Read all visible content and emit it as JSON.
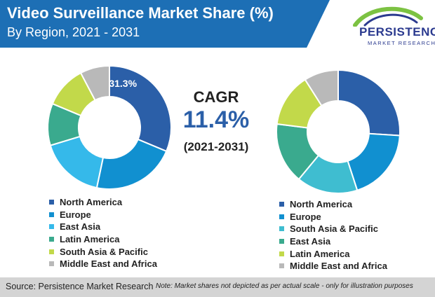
{
  "header": {
    "title": "Video Surveillance Market Share (%)",
    "subtitle": "By Region, 2021 - 2031"
  },
  "logo": {
    "name": "PERSISTENCE",
    "tagline": "MARKET RESEARCH"
  },
  "cagr": {
    "label": "CAGR",
    "value": "11.4%",
    "period": "(2021-2031)"
  },
  "chart_data": [
    {
      "type": "pie",
      "donut": true,
      "year": "2021",
      "categories": [
        "North America",
        "Europe",
        "East Asia",
        "Latin America",
        "South Asia  & Pacific",
        "Middle East and Africa"
      ],
      "values": [
        31.3,
        22,
        17,
        11,
        11,
        7.7
      ],
      "colors": [
        "#2b5fa8",
        "#1190d0",
        "#35b9ea",
        "#3aaa8e",
        "#c2d94a",
        "#b9b9b9"
      ],
      "data_labels": [
        "31.3%",
        "",
        "",
        "",
        "",
        ""
      ],
      "legend_position": "bottom"
    },
    {
      "type": "pie",
      "donut": true,
      "year": "2031",
      "categories": [
        "North America",
        "Europe",
        "South Asia  & Pacific",
        "East Asia",
        "Latin America",
        "Middle East and Africa"
      ],
      "values": [
        26,
        19,
        16,
        16,
        14,
        9
      ],
      "colors": [
        "#2b5fa8",
        "#1190d0",
        "#3fbdd0",
        "#3aaa8e",
        "#c2d94a",
        "#b9b9b9"
      ],
      "data_labels": [
        "",
        "",
        "",
        "",
        "",
        ""
      ],
      "legend_position": "bottom"
    }
  ],
  "footer": {
    "source": "Source: Persistence Market Research",
    "note": "Note: Market shares not depicted as per actual scale - only for illustration purposes"
  },
  "icons": {
    "logo_mark": "green-blue-arc-icon"
  }
}
